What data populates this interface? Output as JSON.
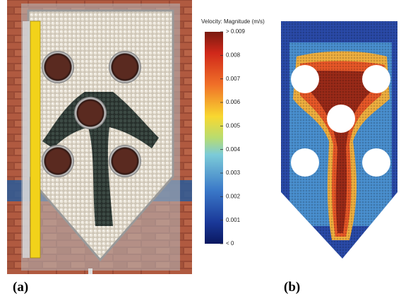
{
  "figure": {
    "colorbar": {
      "title": "Velocity: Magnitude (m/s)",
      "lim": [
        0,
        0.009
      ],
      "ticks": [
        {
          "value": 0.009,
          "label": "> 0.009"
        },
        0.008,
        0.007,
        0.006,
        0.005,
        0.004,
        0.003,
        0.002,
        0.001,
        {
          "value": 0,
          "label": "< 0"
        }
      ]
    },
    "panels": [
      {
        "label": "(a)"
      },
      {
        "label": "(b)"
      }
    ]
  }
}
